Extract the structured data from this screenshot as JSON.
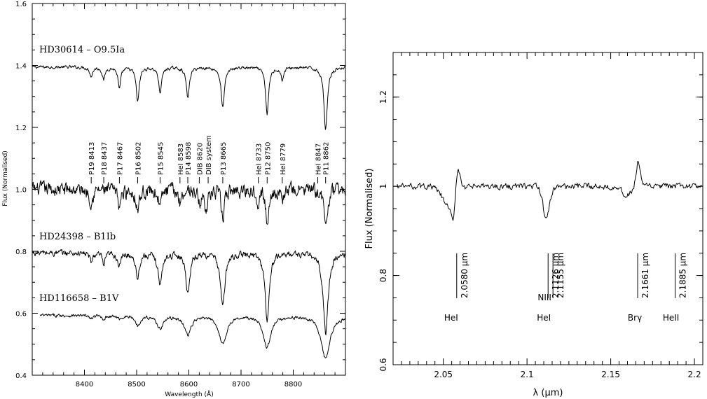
{
  "chart_data": [
    {
      "type": "line",
      "xlabel": "Wavelength (Å)",
      "ylabel": "Flux (Normalised)",
      "xlim": [
        8300,
        8900
      ],
      "ylim": [
        0.4,
        1.6
      ],
      "xticks": [
        8400,
        8500,
        8600,
        8700,
        8800
      ],
      "yticks": [
        0.4,
        0.6,
        0.8,
        1.0,
        1.2,
        1.4,
        1.6
      ],
      "ytick_labels": [
        "0.4",
        "0.6",
        "0.8",
        "1.0",
        "1.2",
        "1.4",
        "1.6"
      ],
      "series": [
        {
          "name": "HD30614 – O9.5Ia",
          "continuum": 1.395,
          "noise": 0.004,
          "x_range": [
            8300,
            8900
          ],
          "lines": [
            [
              8413,
              0.03,
              4
            ],
            [
              8437,
              0.04,
              4
            ],
            [
              8467,
              0.07,
              4
            ],
            [
              8502,
              0.11,
              4.5
            ],
            [
              8545,
              0.08,
              4.5
            ],
            [
              8598,
              0.1,
              4.5
            ],
            [
              8665,
              0.13,
              5
            ],
            [
              8750,
              0.15,
              4.5
            ],
            [
              8779,
              0.04,
              4
            ],
            [
              8862,
              0.2,
              5
            ]
          ]
        },
        {
          "name": "",
          "continuum": 1.0,
          "noise": 0.018,
          "x_range": [
            8300,
            8900
          ],
          "lines": [
            [
              8413,
              0.04,
              4
            ],
            [
              8467,
              0.05,
              5
            ],
            [
              8502,
              0.06,
              5
            ],
            [
              8545,
              0.05,
              5
            ],
            [
              8583,
              0.04,
              4
            ],
            [
              8620,
              0.04,
              4
            ],
            [
              8633,
              0.05,
              6
            ],
            [
              8665,
              0.09,
              5
            ],
            [
              8733,
              0.03,
              3
            ],
            [
              8750,
              0.12,
              4
            ],
            [
              8779,
              0.03,
              4
            ],
            [
              8862,
              0.12,
              5
            ]
          ]
        },
        {
          "name": "HD24398 – B1Ib",
          "continuum": 0.795,
          "noise": 0.008,
          "x_range": [
            8300,
            8900
          ],
          "lines": [
            [
              8413,
              0.03,
              4
            ],
            [
              8437,
              0.04,
              4
            ],
            [
              8467,
              0.04,
              5
            ],
            [
              8502,
              0.08,
              5
            ],
            [
              8545,
              0.1,
              6
            ],
            [
              8598,
              0.13,
              5.5
            ],
            [
              8665,
              0.17,
              6.5
            ],
            [
              8750,
              0.22,
              6
            ],
            [
              8862,
              0.26,
              7
            ]
          ]
        },
        {
          "name": "HD116658 – B1V",
          "continuum": 0.593,
          "noise": 0.004,
          "x_range": [
            8315,
            8900
          ],
          "lines": [
            [
              8413,
              0.01,
              5
            ],
            [
              8437,
              0.01,
              5
            ],
            [
              8467,
              0.01,
              6
            ],
            [
              8502,
              0.03,
              7
            ],
            [
              8545,
              0.04,
              9
            ],
            [
              8598,
              0.06,
              10
            ],
            [
              8665,
              0.09,
              11
            ],
            [
              8750,
              0.1,
              11
            ],
            [
              8862,
              0.14,
              13
            ]
          ]
        }
      ],
      "annotations": [
        "P19 8413",
        "P18 8437",
        "P17 8467",
        "P16 8502",
        "P15 8545",
        "HeI 8583",
        "P14 8598",
        "DIB 8620",
        "DIB system",
        "P13 8665",
        "HeI 8733",
        "P12 8750",
        "HeI 8779",
        "HeI 8847",
        "P11 8862"
      ],
      "annotation_x": [
        8413,
        8437,
        8467,
        8502,
        8545,
        8583,
        8598,
        8620,
        8637,
        8665,
        8733,
        8750,
        8779,
        8847,
        8862
      ]
    },
    {
      "type": "line",
      "xlabel": "λ (μm)",
      "ylabel": "Flux (Normalised)",
      "xlim": [
        2.02,
        2.205
      ],
      "ylim": [
        0.6,
        1.3
      ],
      "xticks": [
        2.05,
        2.1,
        2.15,
        2.2
      ],
      "xtick_labels": [
        "2.05",
        "2.1",
        "2.15",
        "2.2"
      ],
      "yticks": [
        0.6,
        0.8,
        1.0,
        1.2
      ],
      "ytick_labels": [
        "0.6",
        "0.8",
        "1",
        "1.2"
      ],
      "series": [
        {
          "name": "",
          "continuum": 1.0,
          "noise": 0.006,
          "x_range": [
            2.0225,
            2.2045
          ],
          "features": [
            [
              2.0545,
              -0.05,
              0.0045
            ],
            [
              2.0562,
              -0.06,
              0.0012
            ],
            [
              2.0575,
              0.055,
              0.0015
            ],
            [
              2.0595,
              0.04,
              0.0015
            ],
            [
              2.1115,
              -0.07,
              0.002
            ],
            [
              2.1595,
              -0.022,
              0.0025
            ],
            [
              2.1665,
              0.055,
              0.0012
            ]
          ]
        }
      ],
      "line_markers": [
        {
          "label": "2.0580 μm",
          "x": 2.058
        },
        {
          "label": "2.1126 μm",
          "x": 2.1126
        },
        {
          "label": "2.1155 μm",
          "x": 2.1155
        },
        {
          "label": "2.1661 μm",
          "x": 2.1661
        },
        {
          "label": "2.1885 μm",
          "x": 2.1885
        }
      ],
      "species": [
        {
          "label": "HeI",
          "x": 2.058
        },
        {
          "label": "HeI",
          "x": 2.1126
        },
        {
          "label": "NIII",
          "x": 2.1155
        },
        {
          "label": "Brγ",
          "x": 2.1661
        },
        {
          "label": "HeII",
          "x": 2.1885
        }
      ]
    }
  ]
}
